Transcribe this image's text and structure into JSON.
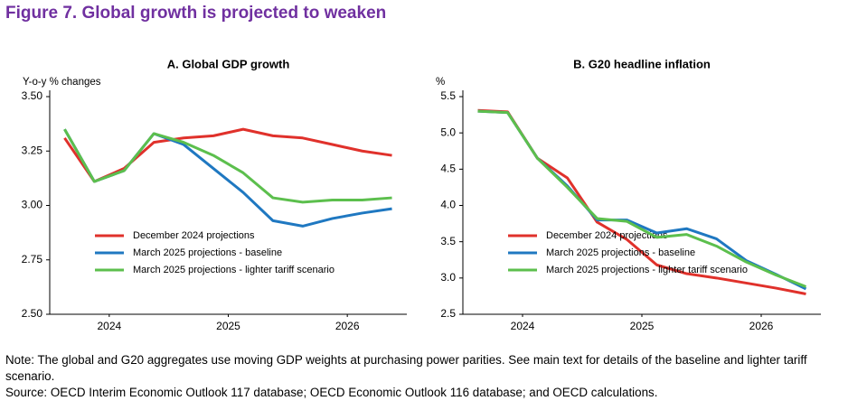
{
  "title": "Figure 7. Global growth is projected to weaken",
  "note": "Note: The global and G20 aggregates use moving GDP weights at purchasing power parities. See main text for details of the baseline and lighter tariff scenario.",
  "source": "Source: OECD Interim Economic Outlook 117 database; OECD Economic Outlook 116 database; and OECD calculations.",
  "chart_data": [
    {
      "type": "line",
      "title": "A. Global GDP growth",
      "y_label": "Y-o-y % changes",
      "x": [
        2024.125,
        2024.375,
        2024.625,
        2024.875,
        2025.125,
        2025.375,
        2025.625,
        2025.875,
        2026.125,
        2026.375,
        2026.625,
        2026.875
      ],
      "xlim": [
        2024,
        2027
      ],
      "xticks": [
        {
          "value": 2024.5,
          "label": "2024"
        },
        {
          "value": 2025.5,
          "label": "2025"
        },
        {
          "value": 2026.5,
          "label": "2026"
        }
      ],
      "ylim": [
        2.5,
        3.5
      ],
      "yticks": [
        {
          "value": 3.5,
          "label": "3.50"
        },
        {
          "value": 3.25,
          "label": "3.25"
        },
        {
          "value": 3.0,
          "label": "3.00"
        },
        {
          "value": 2.75,
          "label": "2.75"
        },
        {
          "value": 2.5,
          "label": "2.50"
        }
      ],
      "legend": "lower left",
      "series": [
        {
          "name": "December 2024 projections",
          "color": "#e0312b",
          "values": [
            3.31,
            3.11,
            3.17,
            3.29,
            3.31,
            3.32,
            3.35,
            3.32,
            3.31,
            3.28,
            3.25,
            3.23
          ]
        },
        {
          "name": "March 2025 projections - baseline",
          "color": "#1f78c1",
          "values": [
            3.35,
            3.11,
            3.16,
            3.33,
            3.28,
            3.17,
            3.06,
            2.93,
            2.905,
            2.94,
            2.965,
            2.985
          ]
        },
        {
          "name": "March 2025 projections - lighter tariff scenario",
          "color": "#5cbf4d",
          "values": [
            3.35,
            3.11,
            3.16,
            3.33,
            3.29,
            3.23,
            3.15,
            3.035,
            3.015,
            3.025,
            3.025,
            3.035
          ]
        }
      ]
    },
    {
      "type": "line",
      "title": "B. G20 headline inflation",
      "y_label": "%",
      "x": [
        2024.125,
        2024.375,
        2024.625,
        2024.875,
        2025.125,
        2025.375,
        2025.625,
        2025.875,
        2026.125,
        2026.375,
        2026.625,
        2026.875
      ],
      "xlim": [
        2024,
        2027
      ],
      "xticks": [
        {
          "value": 2024.5,
          "label": "2024"
        },
        {
          "value": 2025.5,
          "label": "2025"
        },
        {
          "value": 2026.5,
          "label": "2026"
        }
      ],
      "ylim": [
        2.5,
        5.5
      ],
      "yticks": [
        5.5,
        {
          "value": 5.0,
          "label": "5.0"
        },
        4.5,
        {
          "value": 4.0,
          "label": "4.0"
        },
        3.5,
        {
          "value": 3.0,
          "label": "3.0"
        },
        2.5
      ],
      "legend": "lower left",
      "series": [
        {
          "name": "December 2024 projections",
          "color": "#e0312b",
          "values": [
            5.31,
            5.29,
            4.65,
            4.38,
            3.77,
            3.53,
            3.18,
            3.06,
            3.0,
            2.93,
            2.86,
            2.78
          ]
        },
        {
          "name": "March 2025 projections - baseline",
          "color": "#1f78c1",
          "values": [
            5.3,
            5.28,
            4.65,
            4.27,
            3.8,
            3.8,
            3.62,
            3.68,
            3.54,
            3.24,
            3.05,
            2.85
          ]
        },
        {
          "name": "March 2025 projections - lighter tariff scenario",
          "color": "#5cbf4d",
          "values": [
            5.3,
            5.28,
            4.65,
            4.25,
            3.82,
            3.78,
            3.56,
            3.6,
            3.44,
            3.22,
            3.04,
            2.88
          ]
        }
      ]
    }
  ]
}
